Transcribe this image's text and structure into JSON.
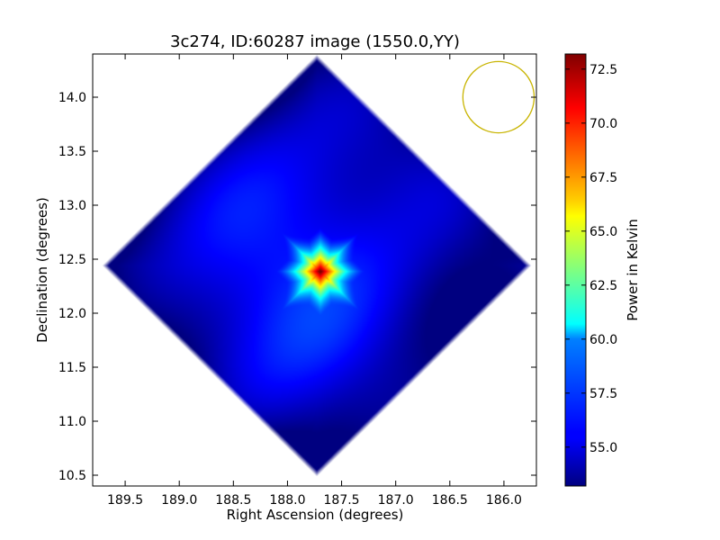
{
  "chart_data": {
    "type": "heatmap",
    "title": "3c274, ID:60287 image (1550.0,YY)",
    "xlabel": "Right Ascension (degrees)",
    "ylabel": "Declination (degrees)",
    "colorbar_label": "Power in Kelvin",
    "colormap": "jet",
    "x_axis_inverted": true,
    "xlim": [
      189.8,
      185.7
    ],
    "ylim": [
      10.4,
      14.4
    ],
    "color_range": [
      53.2,
      73.2
    ],
    "x_ticks": [
      189.5,
      189.0,
      188.5,
      188.0,
      187.5,
      187.0,
      186.5,
      186.0
    ],
    "x_tick_labels": [
      "189.5",
      "189.0",
      "188.5",
      "188.0",
      "187.5",
      "187.0",
      "186.5",
      "186.0"
    ],
    "y_ticks": [
      10.5,
      11.0,
      11.5,
      12.0,
      12.5,
      13.0,
      13.5,
      14.0
    ],
    "y_tick_labels": [
      "10.5",
      "11.0",
      "11.5",
      "12.0",
      "12.5",
      "13.0",
      "13.5",
      "14.0"
    ],
    "colorbar_ticks": [
      55.0,
      57.5,
      60.0,
      62.5,
      65.0,
      67.5,
      70.0,
      72.5
    ],
    "colorbar_tick_labels": [
      "55.0",
      "57.5",
      "60.0",
      "62.5",
      "65.0",
      "67.5",
      "70.0",
      "72.5"
    ],
    "source": {
      "ra": 187.7,
      "dec": 12.39,
      "peak": 72.8
    },
    "footprint_corners": [
      {
        "ra": 187.7,
        "dec": 14.37
      },
      {
        "ra": 185.78,
        "dec": 12.45
      },
      {
        "ra": 187.7,
        "dec": 10.46
      },
      {
        "ra": 189.75,
        "dec": 12.5
      }
    ],
    "background_level": 55.3,
    "beam": {
      "ra": 186.05,
      "dec": 14.0,
      "radius_deg": 0.33,
      "color": "#c8b400"
    }
  }
}
